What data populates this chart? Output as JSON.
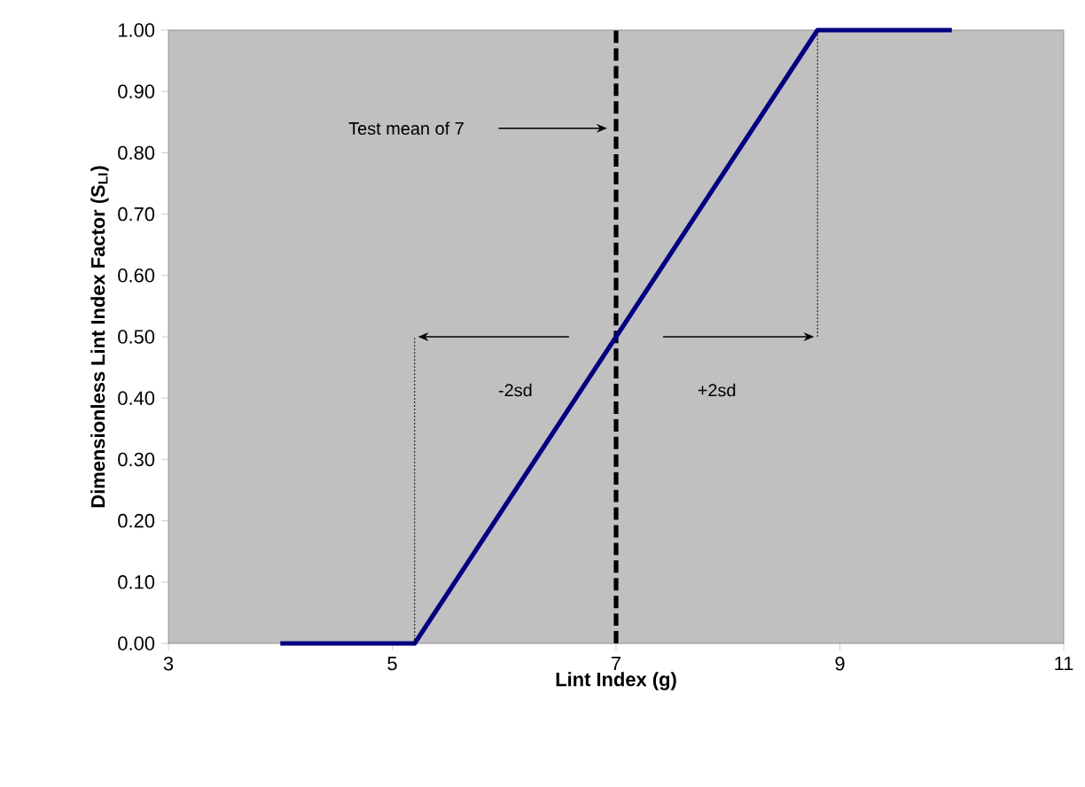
{
  "chart_data": {
    "type": "line",
    "xlabel": "Lint Index (g)",
    "ylabel": "Dimensionless Lint Index Factor (S$_{LI}$)",
    "xlim": [
      3,
      11
    ],
    "xticks": [
      3,
      5,
      7,
      9,
      11
    ],
    "ylim": [
      0,
      1
    ],
    "yticks": [
      {
        "value": 0,
        "label": "0.00"
      },
      {
        "value": 0.1,
        "label": "0.10"
      },
      {
        "value": 0.2,
        "label": "0.20"
      },
      {
        "value": 0.3,
        "label": "0.30"
      },
      {
        "value": 0.4,
        "label": "0.40"
      },
      {
        "value": 0.5,
        "label": "0.50"
      },
      {
        "value": 0.6,
        "label": "0.60"
      },
      {
        "value": 0.7,
        "label": "0.70"
      },
      {
        "value": 0.8,
        "label": "0.80"
      },
      {
        "value": 0.9,
        "label": "0.90"
      },
      {
        "value": 1,
        "label": "1.00"
      }
    ],
    "series": [
      {
        "color": "#000080",
        "line_style": "solid",
        "x": [
          4,
          5.2,
          8.8,
          10
        ],
        "values": [
          0,
          0,
          1,
          1
        ]
      },
      {
        "color": "#000000",
        "line_style": "dotted",
        "x": [
          5.2,
          5.2
        ],
        "values": [
          0,
          0.5
        ]
      },
      {
        "color": "#000000",
        "line_style": "dotted",
        "x": [
          8.8,
          8.8
        ],
        "values": [
          0.5,
          1
        ]
      }
    ],
    "ref_lines": [
      {
        "axis": "x",
        "value": 7,
        "color": "#000000",
        "line_style": "dashed"
      }
    ],
    "annotations": [
      "Test mean of 7",
      "-2sd",
      "+2sd"
    ],
    "marker": "none",
    "grid": false
  }
}
